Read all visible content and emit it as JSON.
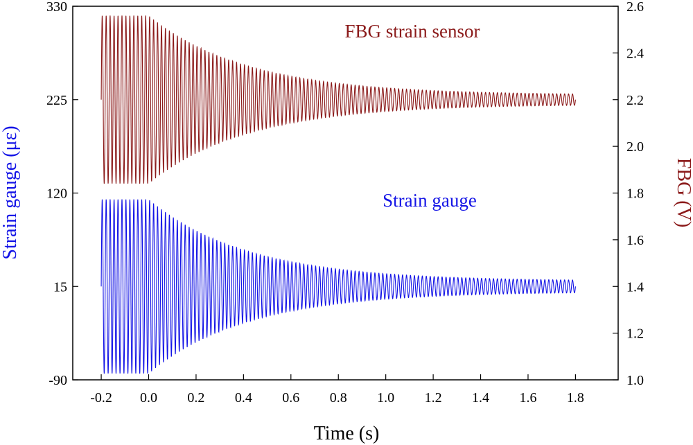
{
  "chart_data": {
    "type": "line",
    "title": "",
    "xlabel": "Time (s)",
    "ylabel_left": "Strain gauge (με)",
    "ylabel_right": "FBG (V)",
    "xlim": [
      -0.32,
      1.98
    ],
    "ylim_left": [
      -90,
      330
    ],
    "ylim_right": [
      1.0,
      2.6
    ],
    "x_ticks": [
      -0.2,
      0.0,
      0.2,
      0.4,
      0.6,
      0.8,
      1.0,
      1.2,
      1.4,
      1.6,
      1.8
    ],
    "x_tick_labels": [
      "-0.2",
      "0.0",
      "0.2",
      "0.4",
      "0.6",
      "0.8",
      "1.0",
      "1.2",
      "1.4",
      "1.6",
      "1.8"
    ],
    "y_left_ticks": [
      -90,
      15,
      120,
      225,
      330
    ],
    "y_left_tick_labels": [
      "-90",
      "15",
      "120",
      "225",
      "330"
    ],
    "y_right_ticks": [
      1.0,
      1.2,
      1.4,
      1.6,
      1.8,
      2.0,
      2.2,
      2.4,
      2.6
    ],
    "y_right_tick_labels": [
      "1.0",
      "1.2",
      "1.4",
      "1.6",
      "1.8",
      "2.0",
      "2.2",
      "2.4",
      "2.6"
    ],
    "grid": false,
    "series": [
      {
        "name": "FBG strain sensor",
        "axis": "right",
        "color": "#8b1a1a",
        "label": "FBG strain sensor",
        "t_start": -0.2,
        "t_decay_start": 0.0,
        "t_end": 1.8,
        "center": 2.2,
        "initial_amplitude": 0.36,
        "final_amplitude": 0.02,
        "decay_rate": 2.4,
        "frequency_hz": 60
      },
      {
        "name": "Strain gauge",
        "axis": "left",
        "color": "#1414e6",
        "label": "Strain gauge",
        "t_start": -0.2,
        "t_decay_start": 0.0,
        "t_end": 1.8,
        "center": 15,
        "initial_amplitude": 98,
        "final_amplitude": 6,
        "decay_rate": 2.4,
        "frequency_hz": 60
      }
    ]
  }
}
